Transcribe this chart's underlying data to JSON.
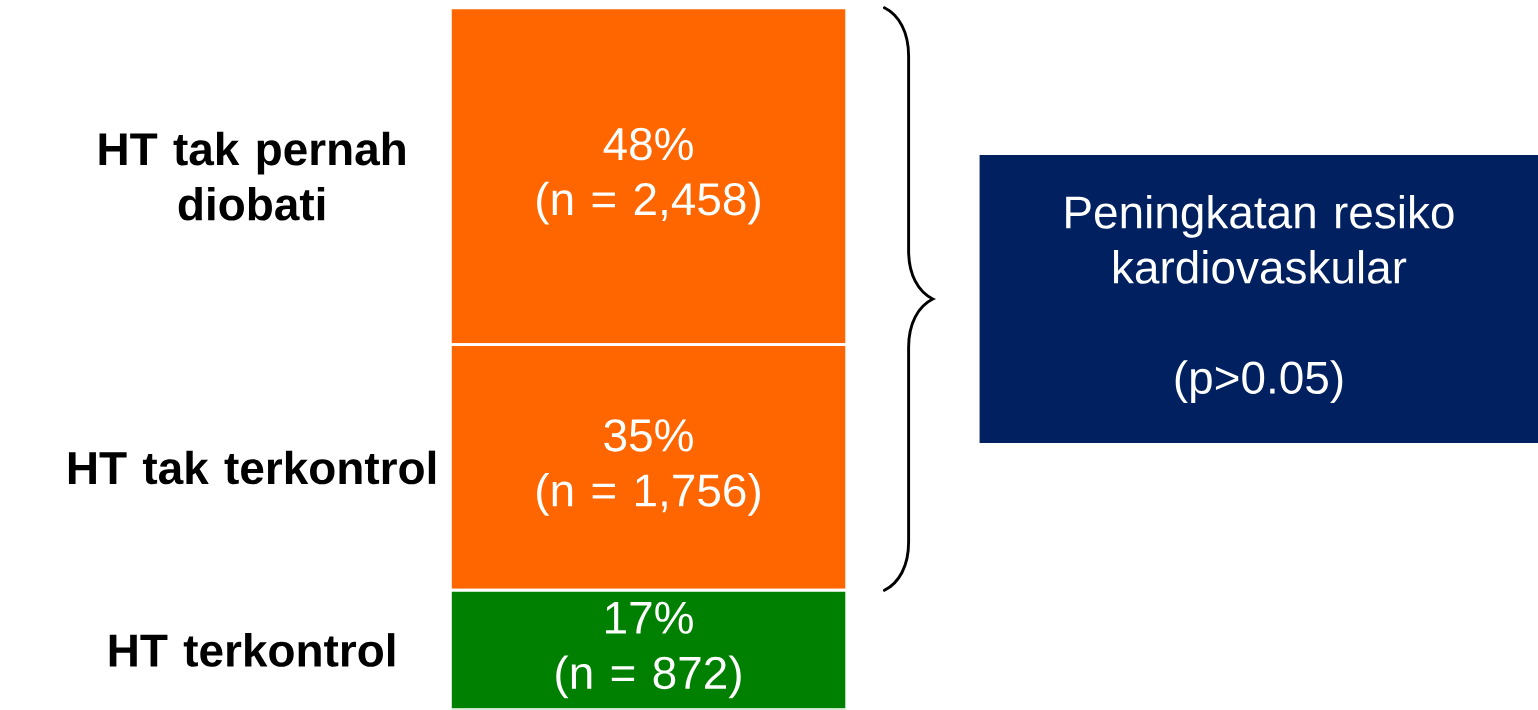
{
  "chart_data": {
    "type": "bar",
    "stacked": true,
    "categories": [
      null
    ],
    "series": [
      {
        "name": "HT terkontrol",
        "color": "#008000",
        "values": [
          17
        ],
        "value_labels": [
          "17%\n(n = 872)"
        ]
      },
      {
        "name": "HT tak terkontrol",
        "color": "#ff6600",
        "values": [
          35
        ],
        "value_labels": [
          "35%\n(n = 1,756)"
        ]
      },
      {
        "name": "HT tak pernah diobati",
        "color": "#ff6600",
        "values": [
          48
        ],
        "value_labels": [
          "48%\n(n = 2,458)"
        ]
      }
    ],
    "annotations": [
      "Peningkatan resiko kardiovaskular",
      "(p>0.05)"
    ]
  }
}
